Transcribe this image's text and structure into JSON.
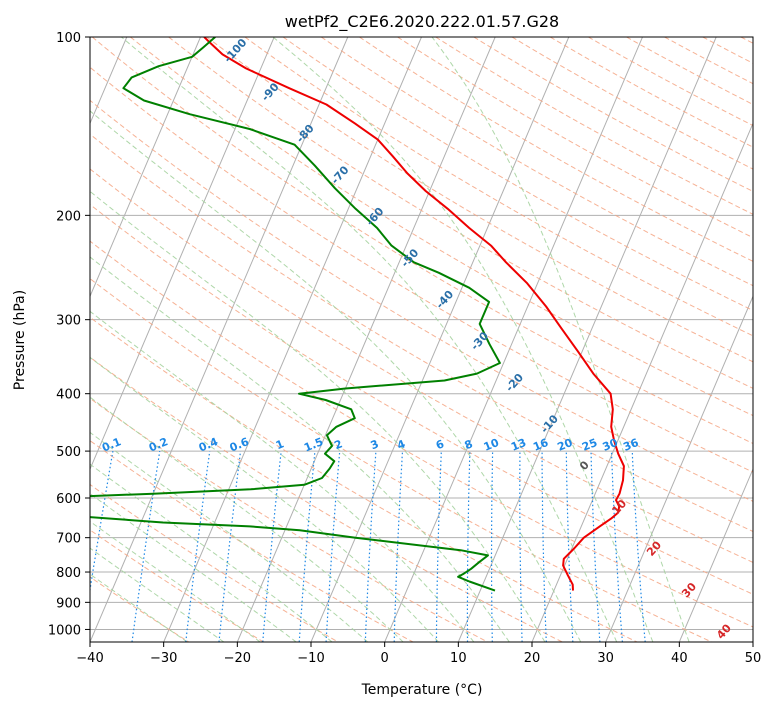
{
  "chart_data": {
    "type": "line",
    "title": "wetPf2_C2E6.2020.222.01.57.G28",
    "xlabel": "Temperature (°C)",
    "ylabel": "Pressure (hPa)",
    "xlim": [
      -40,
      50
    ],
    "ylim": [
      1050,
      100
    ],
    "y_scale": "log",
    "x_ticks": [
      "−40",
      "−30",
      "−20",
      "−10",
      "0",
      "10",
      "20",
      "30",
      "40",
      "50"
    ],
    "y_ticks": [
      "100",
      "200",
      "300",
      "400",
      "500",
      "600",
      "700",
      "800",
      "900",
      "1000"
    ],
    "grid": true,
    "series": [
      {
        "role": "temperature",
        "color": "#ee0000",
        "points": [
          [
            22.6,
            860
          ],
          [
            22.2,
            840
          ],
          [
            21.0,
            810
          ],
          [
            19.8,
            780
          ],
          [
            19.5,
            760
          ],
          [
            20.3,
            730
          ],
          [
            21.0,
            700
          ],
          [
            22.5,
            670
          ],
          [
            23.6,
            650
          ],
          [
            24.2,
            635
          ],
          [
            24.0,
            620
          ],
          [
            23.2,
            605
          ],
          [
            23.3,
            590
          ],
          [
            23.0,
            560
          ],
          [
            22.3,
            530
          ],
          [
            20.8,
            505
          ],
          [
            19.5,
            480
          ],
          [
            18.3,
            455
          ],
          [
            17.5,
            425
          ],
          [
            16.3,
            400
          ],
          [
            12.8,
            370
          ],
          [
            9.5,
            340
          ],
          [
            5.8,
            310
          ],
          [
            2.5,
            285
          ],
          [
            -1.5,
            260
          ],
          [
            -5.5,
            240
          ],
          [
            -8.5,
            225
          ],
          [
            -12.5,
            210
          ],
          [
            -16.5,
            195
          ],
          [
            -20.5,
            182
          ],
          [
            -24.0,
            170
          ],
          [
            -27.0,
            159
          ],
          [
            -30.0,
            149
          ],
          [
            -34.0,
            140
          ],
          [
            -39.0,
            130
          ],
          [
            -45.0,
            122
          ],
          [
            -52.0,
            113
          ],
          [
            -56.0,
            107
          ],
          [
            -58.5,
            102
          ],
          [
            -59.5,
            100
          ]
        ]
      },
      {
        "role": "dewpoint",
        "color": "#008000",
        "points": [
          [
            12.0,
            860
          ],
          [
            8.0,
            830
          ],
          [
            6.2,
            815
          ],
          [
            6.8,
            805
          ],
          [
            7.5,
            790
          ],
          [
            8.2,
            770
          ],
          [
            9.0,
            750
          ],
          [
            5.0,
            735
          ],
          [
            -10.0,
            700
          ],
          [
            -18.0,
            680
          ],
          [
            -25.0,
            670
          ],
          [
            -37.0,
            660
          ],
          [
            -52.0,
            640
          ],
          [
            -55.0,
            620
          ],
          [
            -55.0,
            600
          ],
          [
            -40.0,
            590
          ],
          [
            -27.0,
            580
          ],
          [
            -20.0,
            570
          ],
          [
            -18.0,
            555
          ],
          [
            -17.5,
            535
          ],
          [
            -17.3,
            520
          ],
          [
            -19.0,
            505
          ],
          [
            -18.5,
            490
          ],
          [
            -19.8,
            470
          ],
          [
            -19.0,
            455
          ],
          [
            -17.0,
            440
          ],
          [
            -18.0,
            425
          ],
          [
            -22.0,
            410
          ],
          [
            -26.0,
            400
          ],
          [
            -20.0,
            392
          ],
          [
            -7.0,
            380
          ],
          [
            -3.0,
            370
          ],
          [
            -0.5,
            355
          ],
          [
            -3.0,
            330
          ],
          [
            -5.5,
            305
          ],
          [
            -5.5,
            280
          ],
          [
            -9.0,
            265
          ],
          [
            -14.0,
            250
          ],
          [
            -18.0,
            240
          ],
          [
            -22.0,
            225
          ],
          [
            -25.0,
            210
          ],
          [
            -29.0,
            195
          ],
          [
            -33.0,
            180
          ],
          [
            -37.0,
            165
          ],
          [
            -41.0,
            152
          ],
          [
            -48.0,
            143
          ],
          [
            -57.0,
            135
          ],
          [
            -64.0,
            128
          ],
          [
            -67.5,
            122
          ],
          [
            -67.0,
            117
          ],
          [
            -64.0,
            112
          ],
          [
            -60.0,
            108
          ],
          [
            -59.0,
            104
          ],
          [
            -58.0,
            100
          ]
        ]
      }
    ],
    "dry_adiabat_labels": [
      "-100",
      "-90",
      "-80",
      "-70",
      "-60",
      "-50",
      "-40",
      "-30",
      "-20",
      "-10",
      "0",
      "10",
      "20",
      "30",
      "40"
    ],
    "mixing_ratio_labels": [
      "0.1",
      "0.2",
      "0.4",
      "0.6",
      "1",
      "1.5",
      "2",
      "3",
      "4",
      "6",
      "8",
      "10",
      "13",
      "16",
      "20",
      "25",
      "30",
      "36"
    ],
    "colors": {
      "isotherm": "#b0b0b0",
      "dry_adiabat": "#f4a582",
      "moist_adiabat": "#a6d3a0",
      "mixing_ratio": "#1e88e5",
      "dry_label": "#2a6fa8",
      "warm_label": "#d62728"
    }
  }
}
